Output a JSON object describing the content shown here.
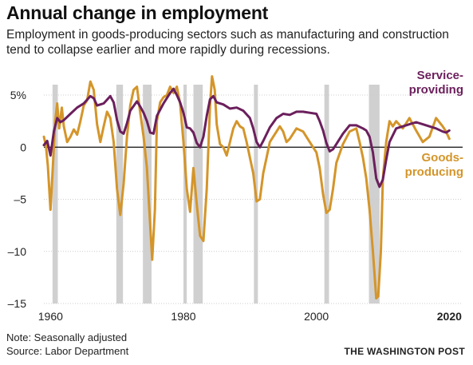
{
  "title": "Annual change in employment",
  "subtitle": "Employment in goods-producing sectors such as manufacturing and construction tend to collapse earlier and more rapidly during recessions.",
  "note": "Note: Seasonally adjusted",
  "source": "Source: Labor Department",
  "credit": "THE WASHINGTON POST",
  "chart_data": {
    "type": "line",
    "title": "Annual change in employment",
    "ylabel": "",
    "xlabel": "",
    "xlim": [
      1959,
      2022
    ],
    "ylim": [
      -15,
      6
    ],
    "x_ticks": [
      1960,
      1980,
      2000,
      2020
    ],
    "x_tick_labels": [
      "1960",
      "1980",
      "2000",
      "2020"
    ],
    "y_ticks": [
      5,
      0,
      -5,
      -10,
      -15
    ],
    "y_tick_labels": [
      "5%",
      "0",
      "–5",
      "–10",
      "–15"
    ],
    "grid": "horizontal",
    "recessions": [
      [
        1960.3,
        1961.1
      ],
      [
        1969.9,
        1970.9
      ],
      [
        1973.9,
        1975.2
      ],
      [
        1980.0,
        1980.5
      ],
      [
        1981.5,
        1982.9
      ],
      [
        1990.6,
        1991.2
      ],
      [
        2001.2,
        2001.9
      ],
      [
        2007.9,
        2009.5
      ]
    ],
    "colors": {
      "service": "#6b1f5c",
      "goods": "#d4952a",
      "recession": "#d0d0d0",
      "zero_line": "#222222",
      "grid": "#cccccc"
    },
    "series": [
      {
        "name": "Service-providing",
        "label_lines": [
          "Service-",
          "providing"
        ],
        "x": [
          1959.0,
          1959.5,
          1960.0,
          1960.5,
          1961.0,
          1961.5,
          1962.0,
          1963.0,
          1964.0,
          1965.0,
          1966.0,
          1966.5,
          1967.0,
          1968.0,
          1969.0,
          1969.5,
          1970.0,
          1970.5,
          1971.0,
          1971.5,
          1972.0,
          1973.0,
          1973.5,
          1974.0,
          1974.5,
          1975.0,
          1975.5,
          1976.0,
          1977.0,
          1978.0,
          1978.5,
          1979.0,
          1979.5,
          1980.0,
          1980.5,
          1981.0,
          1981.5,
          1982.0,
          1982.5,
          1983.0,
          1983.5,
          1984.0,
          1984.5,
          1985.0,
          1986.0,
          1987.0,
          1988.0,
          1989.0,
          1990.0,
          1990.5,
          1991.0,
          1991.5,
          1992.0,
          1993.0,
          1994.0,
          1995.0,
          1996.0,
          1997.0,
          1998.0,
          1999.0,
          2000.0,
          2000.5,
          2001.0,
          2001.5,
          2002.0,
          2002.5,
          2003.0,
          2004.0,
          2005.0,
          2006.0,
          2007.0,
          2007.5,
          2008.0,
          2008.5,
          2009.0,
          2009.5,
          2010.0,
          2010.5,
          2011.0,
          2012.0,
          2013.0,
          2014.0,
          2015.0,
          2016.0,
          2017.0,
          2018.0,
          2019.0,
          2019.5,
          2020.0
        ],
        "values": [
          0.2,
          0.6,
          -0.8,
          1.5,
          2.8,
          2.4,
          2.6,
          3.2,
          3.8,
          4.2,
          4.9,
          4.7,
          4.0,
          4.2,
          4.9,
          4.3,
          2.6,
          1.5,
          1.3,
          2.3,
          3.5,
          4.4,
          3.9,
          3.3,
          2.5,
          1.4,
          1.3,
          3.0,
          4.2,
          5.2,
          5.6,
          5.0,
          4.3,
          3.3,
          1.9,
          1.8,
          1.4,
          0.4,
          0.0,
          1.0,
          3.0,
          4.6,
          4.9,
          4.3,
          4.1,
          3.7,
          3.8,
          3.5,
          2.8,
          1.8,
          0.5,
          0.0,
          0.6,
          1.9,
          2.8,
          3.2,
          3.1,
          3.4,
          3.4,
          3.3,
          3.2,
          2.5,
          1.6,
          0.4,
          -0.4,
          -0.2,
          0.3,
          1.3,
          2.1,
          2.1,
          1.8,
          1.6,
          1.0,
          -0.5,
          -3.0,
          -3.8,
          -3.1,
          -1.2,
          0.5,
          1.8,
          2.0,
          2.2,
          2.4,
          2.2,
          2.0,
          1.8,
          1.5,
          1.4,
          1.6
        ]
      },
      {
        "name": "Goods-producing",
        "label_lines": [
          "Goods-",
          "producing"
        ],
        "x": [
          1959.0,
          1959.3,
          1959.6,
          1960.0,
          1960.3,
          1960.7,
          1961.0,
          1961.3,
          1961.7,
          1962.0,
          1962.5,
          1963.0,
          1963.5,
          1964.0,
          1964.5,
          1965.0,
          1965.5,
          1966.0,
          1966.5,
          1967.0,
          1967.5,
          1968.0,
          1968.5,
          1969.0,
          1969.5,
          1970.0,
          1970.5,
          1971.0,
          1971.5,
          1972.0,
          1972.5,
          1973.0,
          1973.5,
          1974.0,
          1974.5,
          1975.0,
          1975.3,
          1975.7,
          1976.0,
          1976.5,
          1977.0,
          1977.5,
          1978.0,
          1978.5,
          1979.0,
          1979.5,
          1980.0,
          1980.5,
          1981.0,
          1981.5,
          1982.0,
          1982.5,
          1983.0,
          1983.5,
          1984.0,
          1984.3,
          1984.7,
          1985.0,
          1985.5,
          1986.0,
          1986.5,
          1987.0,
          1987.5,
          1988.0,
          1988.5,
          1989.0,
          1989.5,
          1990.0,
          1990.5,
          1991.0,
          1991.5,
          1992.0,
          1992.5,
          1993.0,
          1994.0,
          1994.5,
          1995.0,
          1995.5,
          1996.0,
          1997.0,
          1998.0,
          1999.0,
          2000.0,
          2000.5,
          2001.0,
          2001.5,
          2002.0,
          2002.5,
          2003.0,
          2004.0,
          2005.0,
          2006.0,
          2006.5,
          2007.0,
          2007.5,
          2008.0,
          2008.5,
          2009.0,
          2009.3,
          2009.7,
          2010.0,
          2010.5,
          2011.0,
          2011.5,
          2012.0,
          2013.0,
          2014.0,
          2015.0,
          2016.0,
          2017.0,
          2018.0,
          2019.0,
          2019.5,
          2020.0
        ],
        "values": [
          1.0,
          0.2,
          -1.8,
          -6.0,
          -2.5,
          2.5,
          4.2,
          1.8,
          3.8,
          2.0,
          0.5,
          1.0,
          1.7,
          1.2,
          2.5,
          4.0,
          4.5,
          6.3,
          5.5,
          2.2,
          0.5,
          2.0,
          3.4,
          2.8,
          0.5,
          -4.0,
          -6.5,
          -3.5,
          1.0,
          4.0,
          5.5,
          5.8,
          3.3,
          1.0,
          -2.0,
          -7.5,
          -10.8,
          -6.0,
          2.5,
          4.3,
          4.8,
          5.0,
          5.8,
          5.2,
          5.8,
          4.2,
          0.5,
          -4.0,
          -6.2,
          -2.0,
          -5.5,
          -8.5,
          -9.0,
          -4.0,
          4.0,
          6.8,
          5.5,
          2.2,
          0.3,
          0.0,
          -0.8,
          0.5,
          1.8,
          2.5,
          2.0,
          1.8,
          0.5,
          -1.0,
          -2.5,
          -5.2,
          -5.0,
          -2.5,
          -1.0,
          0.5,
          1.5,
          2.0,
          1.5,
          0.5,
          0.8,
          1.8,
          1.5,
          0.5,
          -0.5,
          -2.0,
          -4.5,
          -6.3,
          -6.0,
          -4.0,
          -1.5,
          0.3,
          1.5,
          1.8,
          0.5,
          -1.0,
          -3.0,
          -6.0,
          -10.0,
          -14.5,
          -14.3,
          -10.0,
          -3.0,
          0.5,
          2.5,
          2.0,
          2.5,
          1.8,
          2.8,
          1.6,
          0.5,
          1.0,
          2.8,
          2.0,
          1.5,
          0.8
        ]
      }
    ]
  }
}
